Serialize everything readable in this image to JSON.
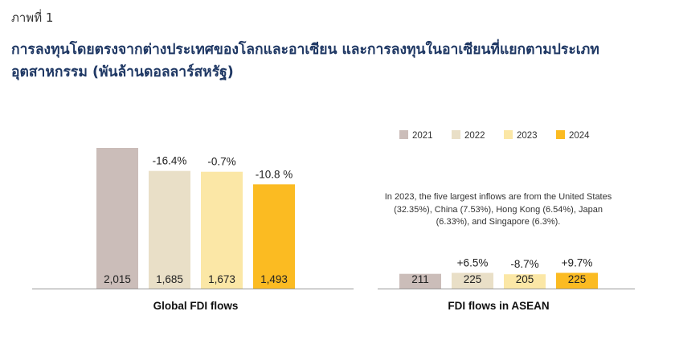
{
  "figure_label": "ภาพที่ 1",
  "title": "การลงทุนโดยตรงจากต่างประเทศของโลกและอาเซียน และการลงทุนในอาเซียนที่แยกตามประเภทอุตสาหกรรม (พันล้านดอลลาร์สหรัฐ)",
  "note": "In 2023, the five largest inflows are from the United States (32.35%), China (7.53%), Hong Kong (6.54%), Japan (6.33%), and Singapore (6.3%).",
  "chart_data": {
    "type": "bar",
    "unit": "USD billion",
    "legend": [
      {
        "name": "2021",
        "color": "#cbbdb9"
      },
      {
        "name": "2022",
        "color": "#e9dfc7"
      },
      {
        "name": "2023",
        "color": "#fbe7a6"
      },
      {
        "name": "2024",
        "color": "#fbbb22"
      }
    ],
    "groups": [
      {
        "label": "Global FDI flows",
        "values": [
          2015,
          1685,
          1673,
          1493
        ],
        "value_labels": [
          "2,015",
          "1,685",
          "1,673",
          "1,493"
        ],
        "changes": [
          "",
          "-16.4%",
          "-0.7%",
          "-10.8 %"
        ]
      },
      {
        "label": "FDI flows in ASEAN",
        "values": [
          211,
          225,
          205,
          225
        ],
        "value_labels": [
          "211",
          "225",
          "205",
          "225"
        ],
        "changes": [
          "",
          "+6.5%",
          "-8.7%",
          "+9.7%"
        ]
      }
    ]
  }
}
